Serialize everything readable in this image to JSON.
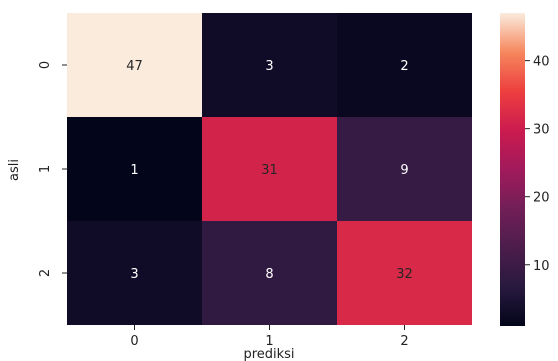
{
  "chart_data": {
    "type": "heatmap",
    "title": "",
    "xlabel": "prediksi",
    "ylabel": "asli",
    "x_categories": [
      "0",
      "1",
      "2"
    ],
    "y_categories": [
      "0",
      "1",
      "2"
    ],
    "values": [
      [
        47,
        3,
        2
      ],
      [
        1,
        31,
        9
      ],
      [
        3,
        8,
        32
      ]
    ],
    "colorbar": {
      "range": [
        1,
        47
      ],
      "ticks": [
        10,
        20,
        30,
        40
      ],
      "tick_labels": [
        "10",
        "20",
        "30",
        "40"
      ],
      "colormap": "rocket"
    },
    "text_colors": {
      "on_dark": "#ffffff",
      "on_light": "#262626"
    }
  }
}
